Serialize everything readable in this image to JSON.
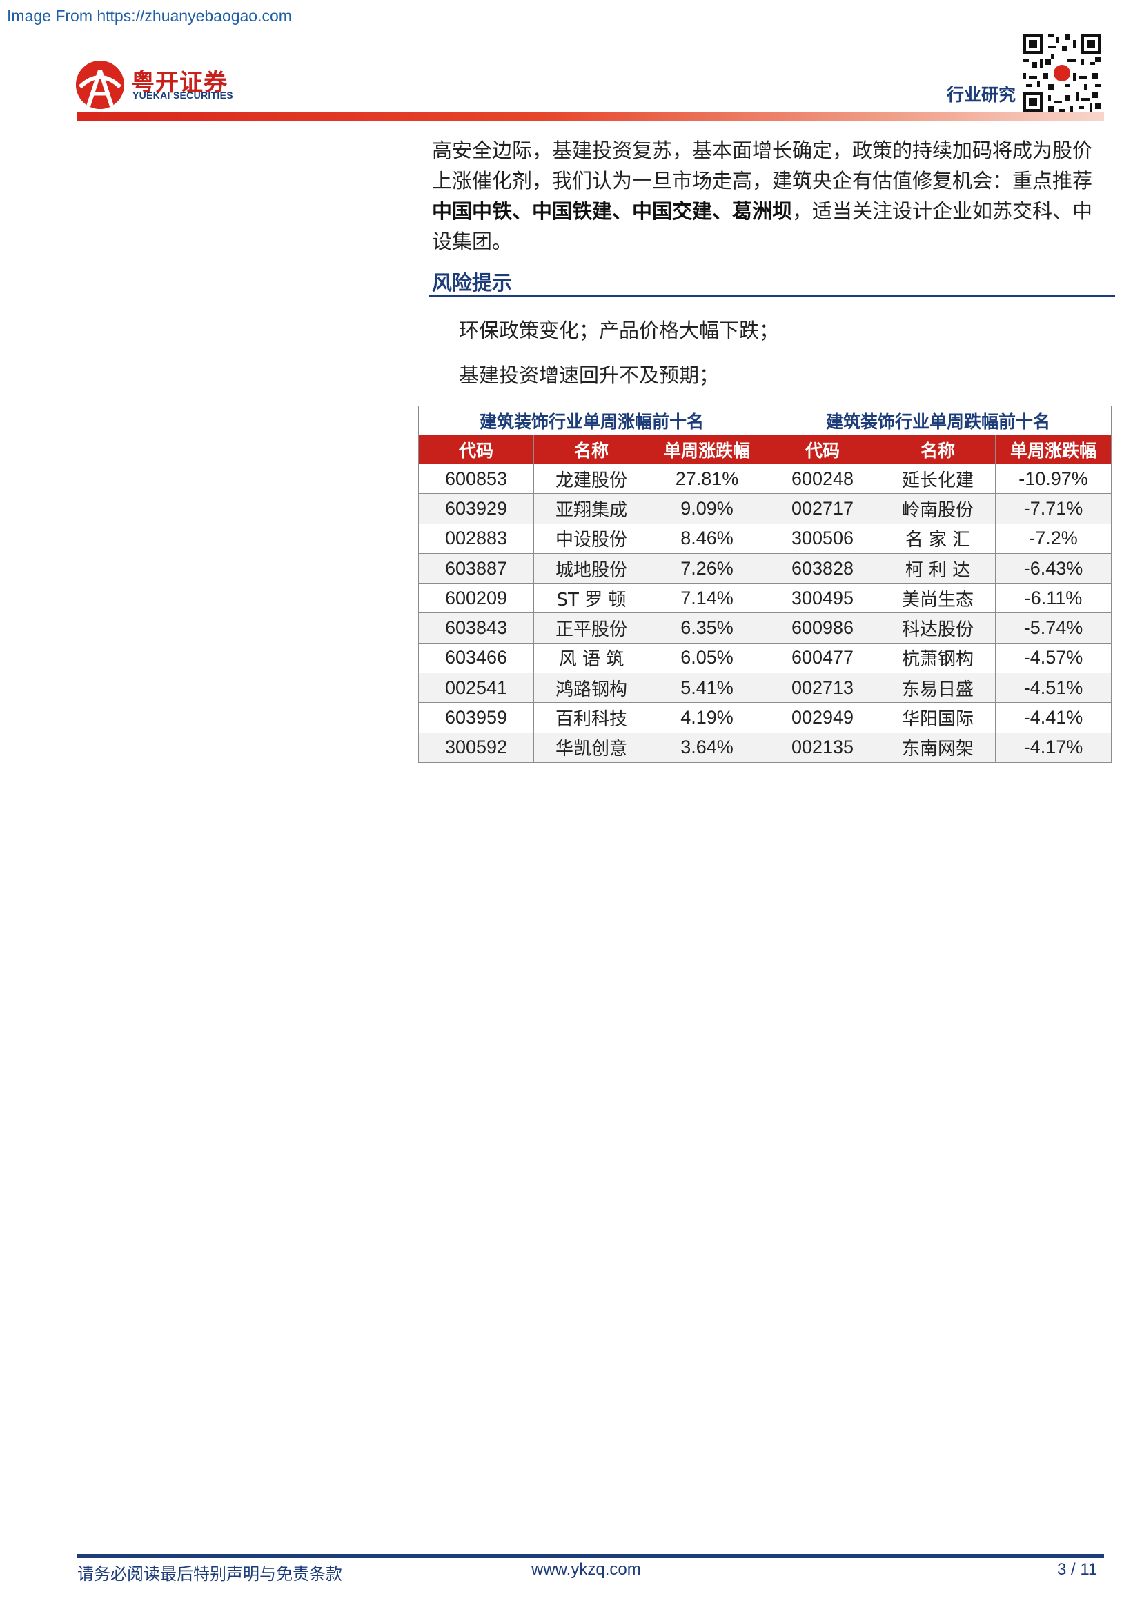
{
  "watermark": "Image From https://zhuanyebaogao.com",
  "brand": {
    "name_cn": "粤开证券",
    "name_en": "YUEKAI SECURITIES",
    "color": "#c8201a",
    "accent": "#1c3d7a"
  },
  "header": {
    "label": "行业研究"
  },
  "body": {
    "p1_part1": "高安全边际，基建投资复苏，基本面增长确定，政策的持续加码将成为股价上涨催化剂，我们认为一旦市场走高，建筑央企有估值修复机会：重点推荐",
    "p1_bold": "中国中铁、中国铁建、中国交建、葛洲坝",
    "p1_part2": "，适当关注设计企业如苏交科、中设集团。"
  },
  "risk": {
    "title": "风险提示",
    "line1": "环保政策变化；产品价格大幅下跌；",
    "line2": "基建投资增速回升不及预期；"
  },
  "table": {
    "left_caption": "建筑装饰行业单周涨幅前十名",
    "right_caption": "建筑装饰行业单周跌幅前十名",
    "headers": [
      "代码",
      "名称",
      "单周涨跌幅",
      "代码",
      "名称",
      "单周涨跌幅"
    ],
    "rows": [
      [
        "600853",
        "龙建股份",
        "27.81%",
        "600248",
        "延长化建",
        "-10.97%"
      ],
      [
        "603929",
        "亚翔集成",
        "9.09%",
        "002717",
        "岭南股份",
        "-7.71%"
      ],
      [
        "002883",
        "中设股份",
        "8.46%",
        "300506",
        "名 家 汇",
        "-7.2%"
      ],
      [
        "603887",
        "城地股份",
        "7.26%",
        "603828",
        "柯 利 达",
        "-6.43%"
      ],
      [
        "600209",
        "ST 罗 顿",
        "7.14%",
        "300495",
        "美尚生态",
        "-6.11%"
      ],
      [
        "603843",
        "正平股份",
        "6.35%",
        "600986",
        "科达股份",
        "-5.74%"
      ],
      [
        "603466",
        "风 语 筑",
        "6.05%",
        "600477",
        "杭萧钢构",
        "-4.57%"
      ],
      [
        "002541",
        "鸿路钢构",
        "5.41%",
        "002713",
        "东易日盛",
        "-4.51%"
      ],
      [
        "603959",
        "百利科技",
        "4.19%",
        "002949",
        "华阳国际",
        "-4.41%"
      ],
      [
        "300592",
        "华凯创意",
        "3.64%",
        "002135",
        "东南网架",
        "-4.17%"
      ]
    ]
  },
  "footer": {
    "disclaimer": "请务必阅读最后特别声明与免责条款",
    "website": "www.ykzq.com",
    "page": "3 / 11"
  }
}
